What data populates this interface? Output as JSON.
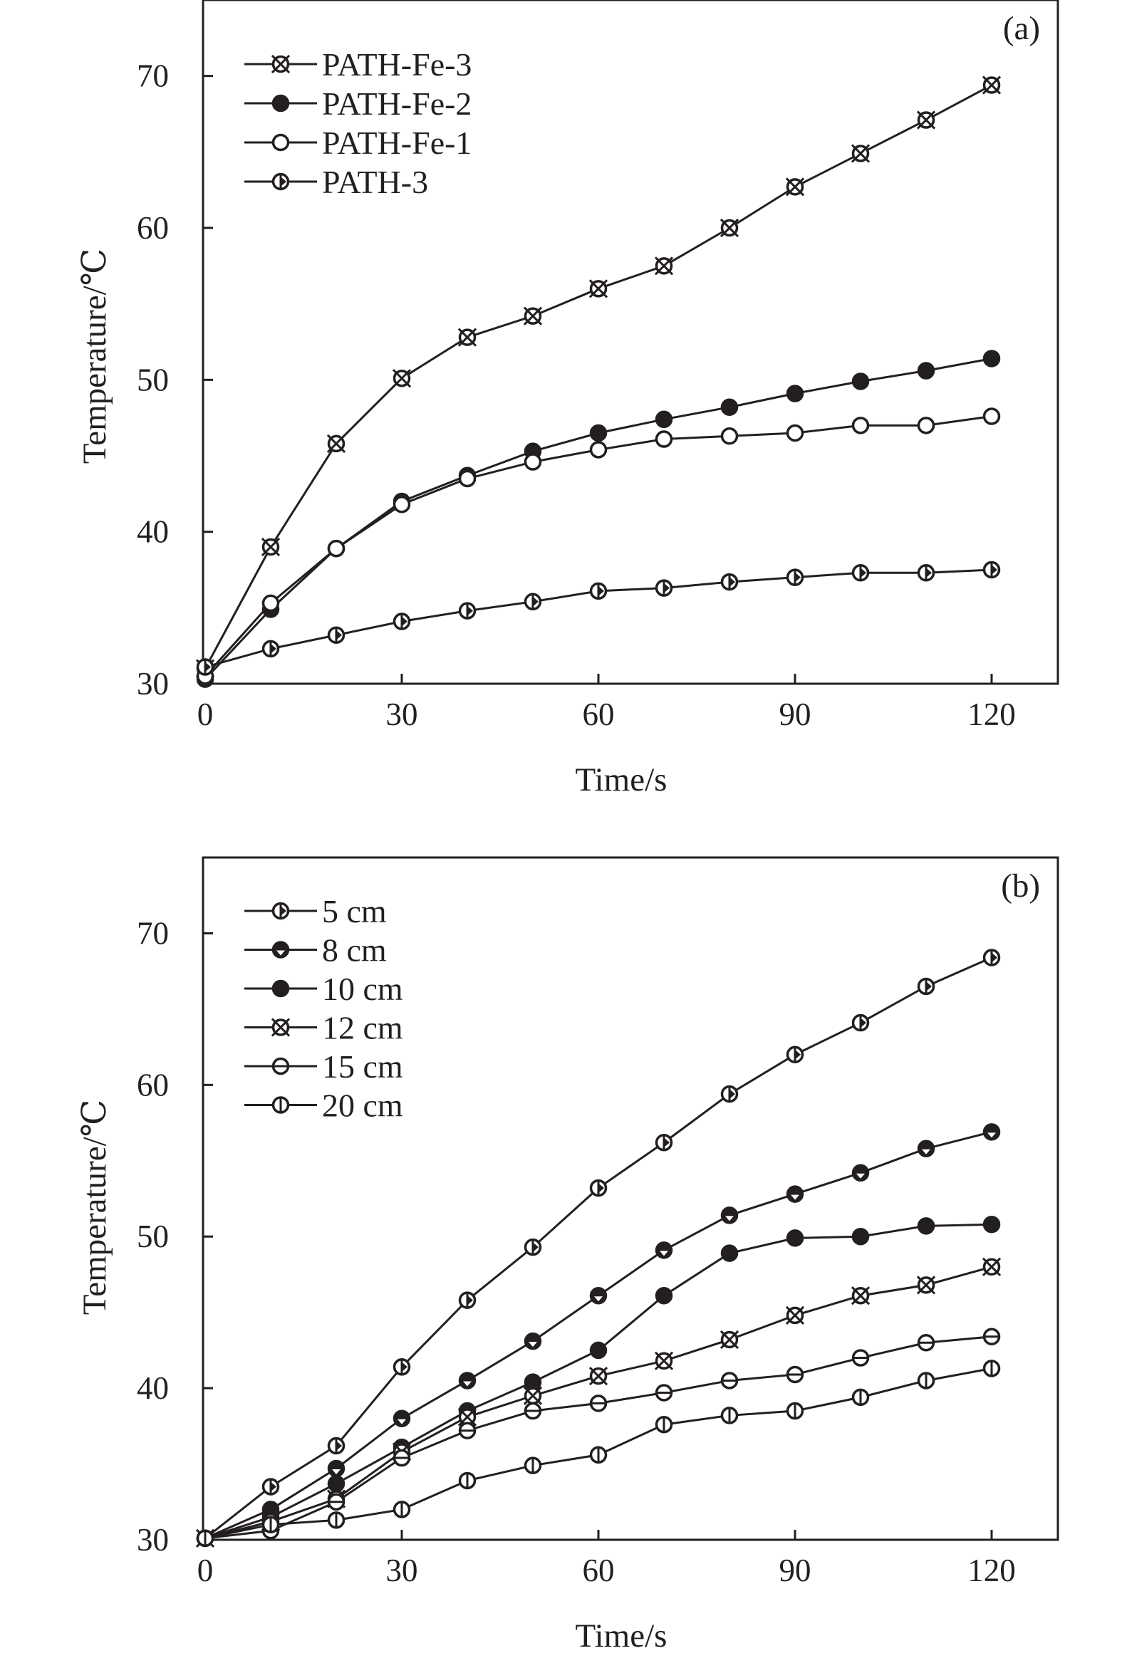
{
  "chart_data": [
    {
      "type": "line",
      "panel_label": "(a)",
      "xlabel": "Time/s",
      "ylabel": "Temperature/℃",
      "xlim": [
        0,
        130
      ],
      "ylim": [
        30,
        75
      ],
      "xticks": [
        0,
        30,
        60,
        90,
        120
      ],
      "yticks": [
        30,
        40,
        50,
        60,
        70
      ],
      "grid": false,
      "legend_position": "top-left",
      "x": [
        0,
        10,
        20,
        30,
        40,
        50,
        60,
        70,
        80,
        90,
        100,
        110,
        120
      ],
      "series": [
        {
          "name": "PATH-Fe-3",
          "marker": "circle-x",
          "values": [
            31.0,
            39.0,
            45.8,
            50.1,
            52.8,
            54.2,
            56.0,
            57.5,
            60.0,
            62.7,
            64.9,
            67.1,
            69.4
          ]
        },
        {
          "name": "PATH-Fe-2",
          "marker": "filled-circle",
          "values": [
            30.3,
            34.9,
            38.9,
            42.0,
            43.7,
            45.3,
            46.5,
            47.4,
            48.2,
            49.1,
            49.9,
            50.6,
            51.4
          ]
        },
        {
          "name": "PATH-Fe-1",
          "marker": "open-circle",
          "values": [
            30.5,
            35.3,
            38.9,
            41.8,
            43.5,
            44.6,
            45.4,
            46.1,
            46.3,
            46.5,
            47.0,
            47.0,
            47.6
          ]
        },
        {
          "name": "PATH-3",
          "marker": "circle-vline-triangle",
          "values": [
            31.1,
            32.3,
            33.2,
            34.1,
            34.8,
            35.4,
            36.1,
            36.3,
            36.7,
            37.0,
            37.3,
            37.3,
            37.5
          ]
        }
      ]
    },
    {
      "type": "line",
      "panel_label": "(b)",
      "xlabel": "Time/s",
      "ylabel": "Temperature/℃",
      "xlim": [
        0,
        130
      ],
      "ylim": [
        30,
        75
      ],
      "xticks": [
        0,
        30,
        60,
        90,
        120
      ],
      "yticks": [
        30,
        40,
        50,
        60,
        70
      ],
      "grid": false,
      "legend_position": "top-left",
      "x": [
        0,
        10,
        20,
        30,
        40,
        50,
        60,
        70,
        80,
        90,
        100,
        110,
        120
      ],
      "series": [
        {
          "name": "5 cm",
          "marker": "circle-vline-triangle",
          "values": [
            30.1,
            33.5,
            36.2,
            41.4,
            45.8,
            49.3,
            53.2,
            56.2,
            59.4,
            62.0,
            64.1,
            66.5,
            68.4
          ]
        },
        {
          "name": "8 cm",
          "marker": "filled-circle-triangle",
          "values": [
            30.1,
            32.0,
            34.7,
            38.0,
            40.5,
            43.1,
            46.1,
            49.1,
            51.4,
            52.8,
            54.2,
            55.8,
            56.9
          ]
        },
        {
          "name": "10 cm",
          "marker": "filled-circle",
          "values": [
            30.1,
            31.5,
            33.7,
            36.1,
            38.5,
            40.4,
            42.5,
            46.1,
            48.9,
            49.9,
            50.0,
            50.7,
            50.8
          ]
        },
        {
          "name": "12 cm",
          "marker": "circle-x",
          "values": [
            30.1,
            31.2,
            32.7,
            35.8,
            38.1,
            39.5,
            40.8,
            41.8,
            43.2,
            44.8,
            46.1,
            46.8,
            48.0
          ]
        },
        {
          "name": "15 cm",
          "marker": "circle-hline",
          "values": [
            30.1,
            30.6,
            32.5,
            35.4,
            37.2,
            38.5,
            39.0,
            39.7,
            40.5,
            40.9,
            42.0,
            43.0,
            43.4
          ]
        },
        {
          "name": "20 cm",
          "marker": "circle-vline",
          "values": [
            30.1,
            31.0,
            31.3,
            32.0,
            33.9,
            34.9,
            35.6,
            37.6,
            38.2,
            38.5,
            39.4,
            40.5,
            41.3
          ]
        }
      ]
    }
  ],
  "colors": {
    "ink": "#231f20",
    "background": "#ffffff"
  }
}
